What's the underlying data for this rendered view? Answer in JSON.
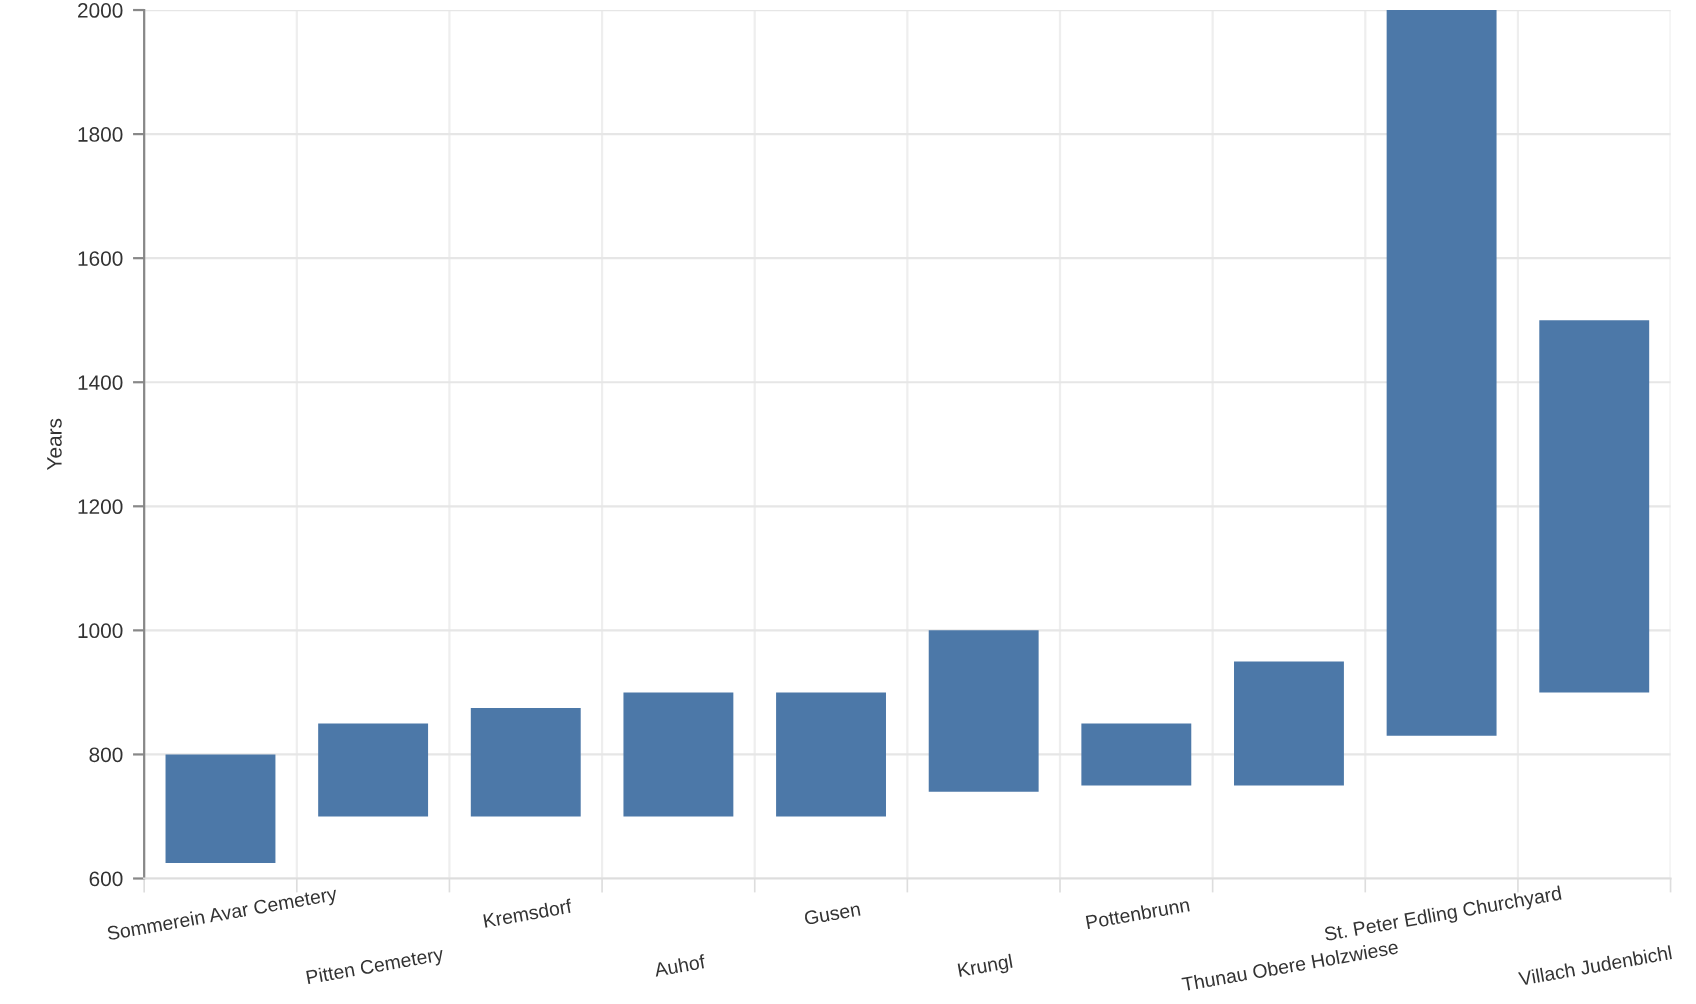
{
  "chart_data": {
    "type": "bar",
    "ylabel": "Years",
    "categories": [
      "Sommerein Avar Cemetery",
      "Pitten Cemetery",
      "Kremsdorf",
      "Auhof",
      "Gusen",
      "Krungl",
      "Pottenbrunn",
      "Thunau Obere Holzwiese",
      "St. Peter Edling Churchyard",
      "Villach Judenbichl"
    ],
    "base": [
      625,
      700,
      700,
      700,
      700,
      740,
      750,
      750,
      830,
      900
    ],
    "values": [
      175,
      150,
      175,
      200,
      200,
      260,
      100,
      200,
      1170,
      600
    ],
    "color": "#4c78a8",
    "ylim": [
      600,
      2000
    ],
    "yticks": [
      600,
      800,
      1000,
      1200,
      1400,
      1600,
      1800,
      2000
    ],
    "grid": true
  }
}
